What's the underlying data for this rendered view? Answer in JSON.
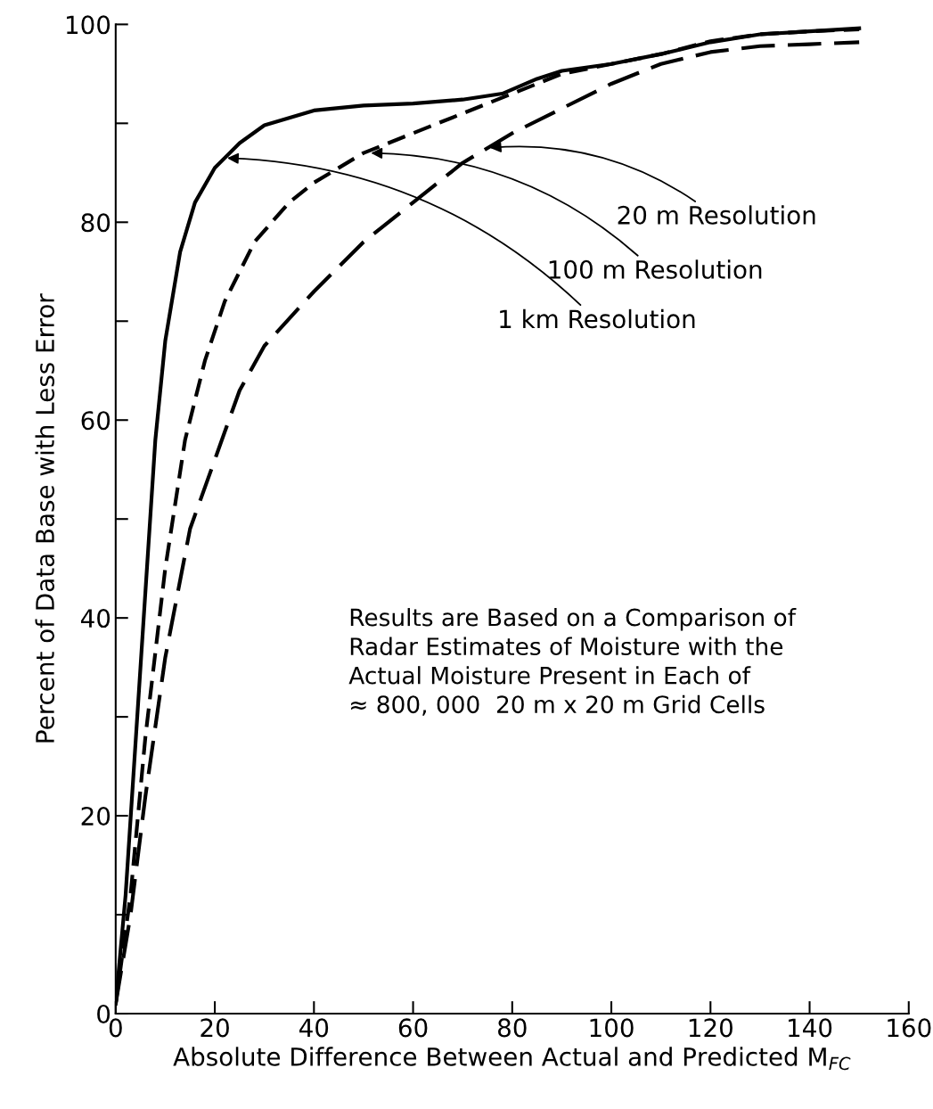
{
  "chart_data": {
    "type": "line",
    "xlabel": "Absolute Difference Between Actual and Predicted M$_{FC}$",
    "ylabel": "Percent of Data Base with Less Error",
    "xlim": [
      0,
      160
    ],
    "ylim": [
      0,
      100
    ],
    "xticks": [
      0,
      20,
      40,
      60,
      80,
      100,
      120,
      140,
      160
    ],
    "yticks": [
      0,
      {
        "value": 10,
        "label": null
      },
      20,
      {
        "value": 30,
        "label": null
      },
      40,
      {
        "value": 50,
        "label": null
      },
      60,
      {
        "value": 70,
        "label": null
      },
      80,
      {
        "value": 90,
        "label": null
      },
      100
    ],
    "marker": "none",
    "series": [
      {
        "color": "#000000",
        "line_style": "solid",
        "x": [
          0,
          2,
          5,
          8,
          10,
          13,
          16,
          20,
          25,
          30,
          40,
          50,
          60,
          70,
          78,
          85,
          90,
          100,
          110,
          120,
          130,
          140,
          150
        ],
        "values": [
          1,
          12,
          35,
          58,
          68,
          77,
          82,
          85.5,
          88,
          89.8,
          91.3,
          91.8,
          92,
          92.4,
          93,
          94.5,
          95.3,
          96,
          97,
          98.2,
          99,
          99.3,
          99.6
        ]
      },
      {
        "color": "#000000",
        "line_style": "dashed",
        "x": [
          0,
          3,
          6,
          10,
          14,
          18,
          22,
          28,
          35,
          40,
          50,
          60,
          70,
          80,
          90,
          100,
          110,
          120,
          130,
          140,
          150
        ],
        "values": [
          1,
          12,
          28,
          45,
          58,
          66,
          72,
          78,
          82,
          84,
          87,
          89,
          91,
          93,
          95,
          96,
          97,
          98.3,
          99,
          99.3,
          99.5
        ]
      },
      {
        "color": "#000000",
        "line_style": "dashed",
        "x": [
          0,
          3,
          6,
          10,
          15,
          20,
          25,
          30,
          40,
          50,
          60,
          70,
          80,
          90,
          100,
          110,
          120,
          130,
          140,
          150
        ],
        "values": [
          1,
          10,
          22,
          36,
          49,
          56,
          63,
          67.5,
          73,
          78,
          82,
          86,
          89,
          91.5,
          94,
          96,
          97.2,
          97.8,
          98,
          98.2
        ]
      }
    ],
    "annotations": [
      {
        "text": "20 m Resolution",
        "x": 75,
        "y": 87.5
      },
      {
        "text": "100 m Resolution",
        "x": 51,
        "y": 87
      },
      {
        "text": "1 km Resolution",
        "x": 22,
        "y": 86.5
      },
      "Results are Based on a Comparison of\nRadar Estimates of Moisture with the\nActual Moisture Present in Each of\n≈ 800, 000  20 m x 20 m Grid Cells"
    ]
  }
}
